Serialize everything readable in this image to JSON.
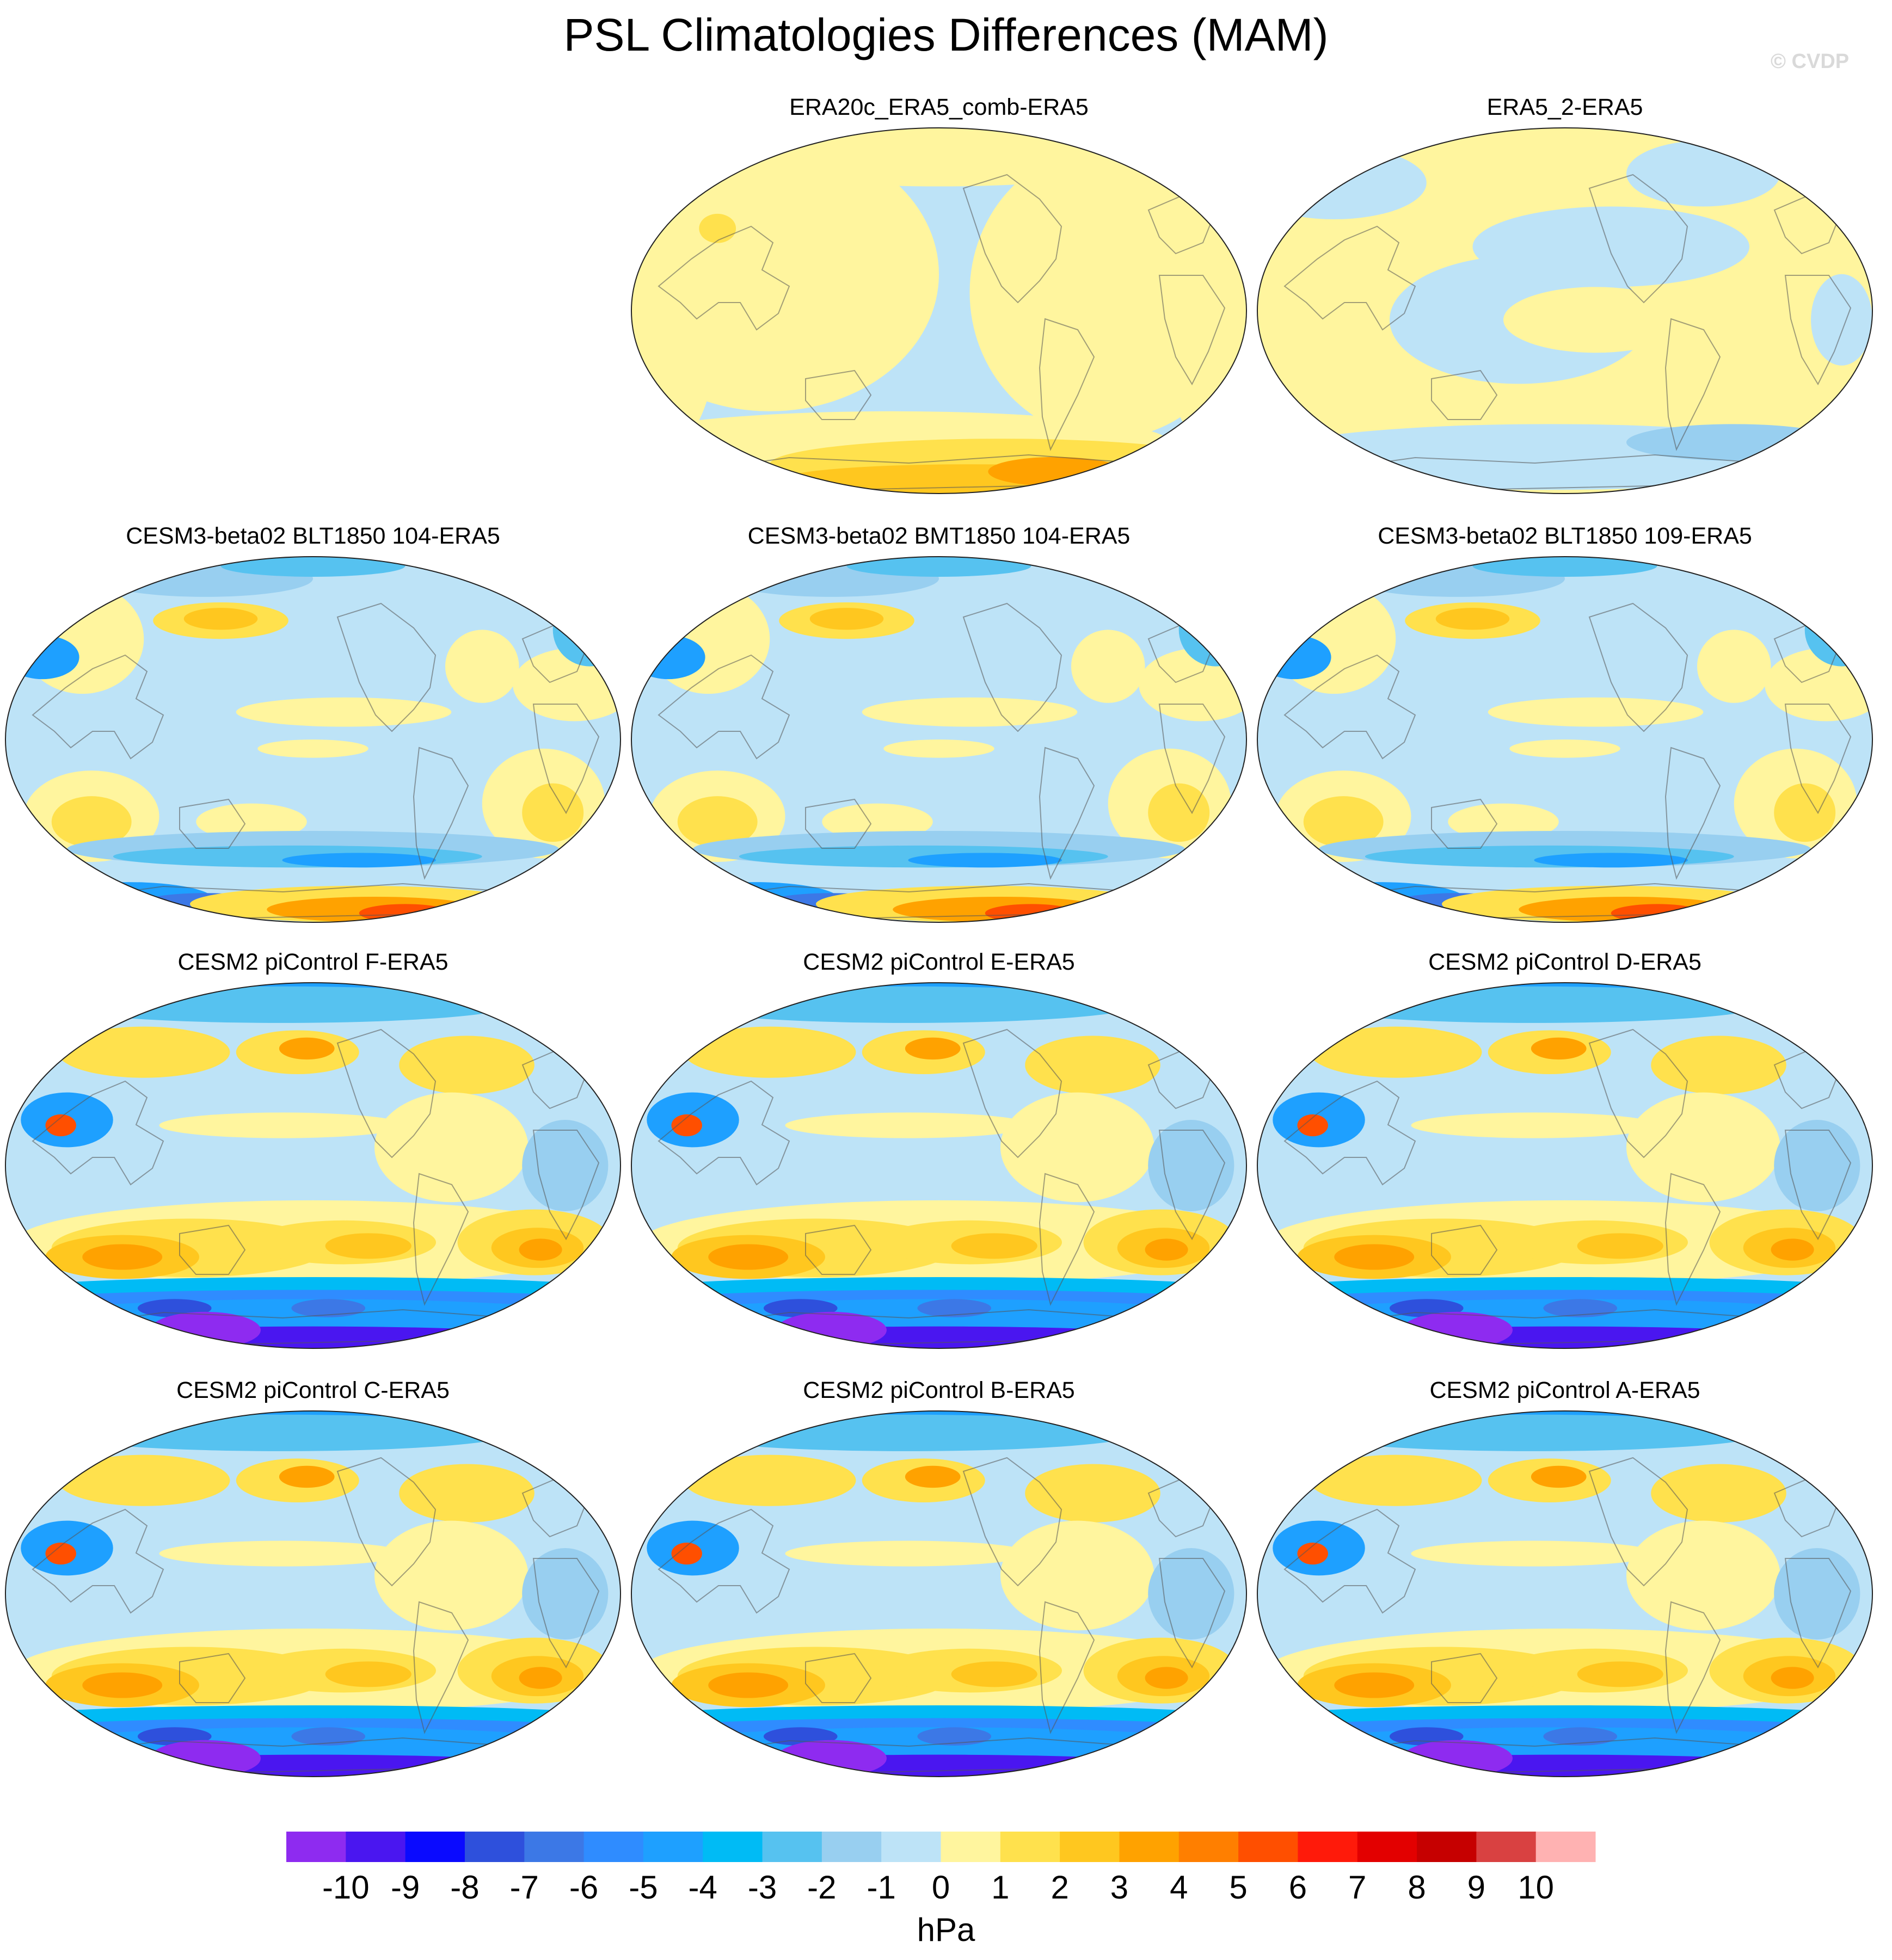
{
  "page": {
    "title": "PSL Climatologies Differences (MAM)",
    "watermark": "© CVDP"
  },
  "chart_data": {
    "type": "heatmap",
    "projection": "robinson-like global map, centered on the Pacific",
    "title": "PSL Climatologies Differences (MAM)",
    "units": "hPa",
    "colorbar": {
      "levels": [
        -10,
        -9,
        -8,
        -7,
        -6,
        -5,
        -4,
        -3,
        -2,
        -1,
        0,
        1,
        2,
        3,
        4,
        5,
        6,
        7,
        8,
        9,
        10
      ],
      "tick_labels": [
        "-10",
        "-9",
        "-8",
        "-7",
        "-6",
        "-5",
        "-4",
        "-3",
        "-2",
        "-1",
        "0",
        "1",
        "2",
        "3",
        "4",
        "5",
        "6",
        "7",
        "8",
        "9",
        "10"
      ],
      "colors": [
        "#8e2bf0",
        "#4a16f0",
        "#0a0aff",
        "#2e50dc",
        "#3c78e6",
        "#2f8cff",
        "#1ea0ff",
        "#00bbf5",
        "#56c2f0",
        "#98cff0",
        "#bde3f7",
        "#fff59e",
        "#ffe14d",
        "#ffc71f",
        "#ffa200",
        "#ff7f00",
        "#ff4f00",
        "#ff1a0a",
        "#e30000",
        "#c60000",
        "#d94141",
        "#ffb2b2"
      ]
    },
    "panels": [
      {
        "id": "era20c",
        "title": "ERA20c_ERA5_comb-ERA5",
        "pattern": "era20c"
      },
      {
        "id": "era5-2",
        "title": "ERA5_2-ERA5",
        "pattern": "era5"
      },
      {
        "id": "blt104",
        "title": "CESM3-beta02 BLT1850 104-ERA5",
        "pattern": "beta"
      },
      {
        "id": "bmt104",
        "title": "CESM3-beta02 BMT1850 104-ERA5",
        "pattern": "beta"
      },
      {
        "id": "blt109",
        "title": "CESM3-beta02 BLT1850 109-ERA5",
        "pattern": "beta"
      },
      {
        "id": "f",
        "title": "CESM2 piControl F-ERA5",
        "pattern": "cesm2"
      },
      {
        "id": "e",
        "title": "CESM2 piControl E-ERA5",
        "pattern": "cesm2"
      },
      {
        "id": "d",
        "title": "CESM2 piControl D-ERA5",
        "pattern": "cesm2"
      },
      {
        "id": "c",
        "title": "CESM2 piControl C-ERA5",
        "pattern": "cesm2"
      },
      {
        "id": "b",
        "title": "CESM2 piControl B-ERA5",
        "pattern": "cesm2"
      },
      {
        "id": "a",
        "title": "CESM2 piControl A-ERA5",
        "pattern": "cesm2"
      }
    ]
  }
}
